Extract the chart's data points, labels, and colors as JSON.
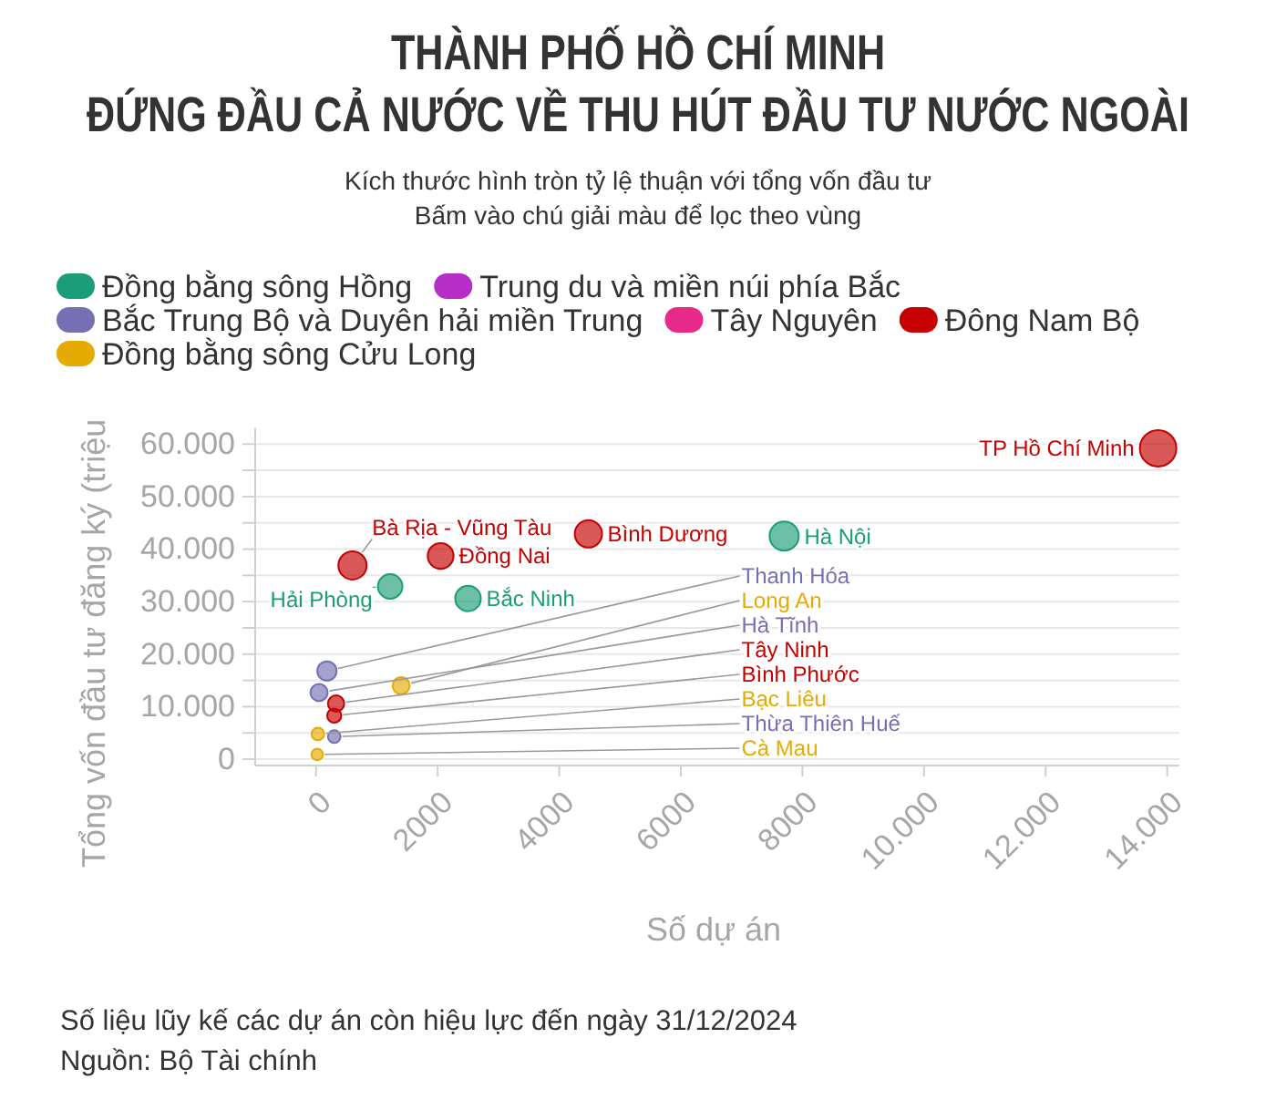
{
  "chart_data": {
    "type": "bubble",
    "title": "THÀNH PHỐ HỒ CHÍ MINH\nĐỨNG ĐẦU CẢ NƯỚC VỀ THU HÚT ĐẦU TƯ NƯỚC NGOÀI",
    "subtitle": "Kích thước hình tròn tỷ lệ thuận với tổng vốn đầu tư\nBấm vào chú giải màu để lọc theo vùng",
    "xlabel": "Số dự án",
    "ylabel": "Tổng vốn đầu tư đăng ký (triệu",
    "xlim": [
      -1000,
      14200
    ],
    "ylim": [
      -1200,
      63000
    ],
    "xticks": [
      0,
      2000,
      4000,
      6000,
      8000,
      {
        "value": 10000,
        "label": "10.000"
      },
      {
        "value": 12000,
        "label": "12.000"
      },
      {
        "value": 14000,
        "label": "14.000"
      }
    ],
    "yticks": [
      0,
      {
        "value": 5000,
        "label": null
      },
      {
        "value": 10000,
        "label": "10.000"
      },
      {
        "value": 15000,
        "label": null
      },
      {
        "value": 20000,
        "label": "20.000"
      },
      {
        "value": 25000,
        "label": null
      },
      {
        "value": 30000,
        "label": "30.000"
      },
      {
        "value": 35000,
        "label": null
      },
      {
        "value": 40000,
        "label": "40.000"
      },
      {
        "value": 45000,
        "label": null
      },
      {
        "value": 50000,
        "label": "50.000"
      },
      {
        "value": 55000,
        "label": null
      },
      {
        "value": 60000,
        "label": "60.000"
      }
    ],
    "grid": "y",
    "legend": "top left",
    "series": [
      {
        "name": "Đồng bằng sông Hồng",
        "color": "#1b9e77",
        "x": [
          7700,
          1220,
          2500
        ],
        "values": [
          42500,
          32900,
          30600
        ],
        "sizes": [
          0.64,
          0.45,
          0.49
        ]
      },
      {
        "name": "Trung du và miền núi phía Bắc",
        "color": "#b82cc9"
      },
      {
        "name": "Bắc Trung Bộ và Duyên hải miền Trung",
        "color": "#7570b3",
        "x": [
          180,
          50,
          300
        ],
        "values": [
          16800,
          12700,
          4300
        ],
        "sizes": [
          0.28,
          0.22,
          0.12
        ]
      },
      {
        "name": "Tây Nguyên",
        "color": "#e7298a"
      },
      {
        "name": "Đông Nam Bộ",
        "color": "#c40000",
        "x": [
          13850,
          4480,
          2050,
          600,
          330,
          300
        ],
        "values": [
          59200,
          42900,
          38700,
          36900,
          10600,
          8300
        ],
        "sizes": [
          1,
          0.56,
          0.5,
          0.6,
          0.2,
          0.15
        ]
      },
      {
        "name": "Đồng bằng sông Cửu Long",
        "color": "#e6ab02",
        "x": [
          1400,
          30,
          20
        ],
        "values": [
          14000,
          4800,
          900
        ],
        "sizes": [
          0.22,
          0.12,
          0.1
        ]
      }
    ],
    "annotations": [
      {
        "text": "TP Hồ Chí Minh",
        "x": 13850,
        "y": 59200
      },
      {
        "text": "Hà Nội",
        "x": 7700,
        "y": 42500
      },
      {
        "text": "Bình Dương",
        "x": 4480,
        "y": 42900
      },
      {
        "text": "Đồng Nai",
        "x": 2050,
        "y": 38700
      },
      {
        "text": "Bà Rịa - Vũng Tàu",
        "x": 600,
        "y": 36900
      },
      {
        "text": "Hải Phòng",
        "x": 1220,
        "y": 32900
      },
      {
        "text": "Bắc Ninh",
        "x": 2500,
        "y": 30600
      },
      {
        "text": "Thanh Hóa",
        "x": 180,
        "y": 16800
      },
      {
        "text": "Hà Tĩnh",
        "x": 50,
        "y": 12700
      },
      {
        "text": "Thừa Thiên Huế",
        "x": 300,
        "y": 4300
      },
      {
        "text": "Tây Ninh",
        "x": 330,
        "y": 10600
      },
      {
        "text": "Bình Phước",
        "x": 300,
        "y": 8300
      },
      {
        "text": "Long An",
        "x": 1400,
        "y": 14000
      },
      {
        "text": "Bạc Liêu",
        "x": 30,
        "y": 4800
      },
      {
        "text": "Cà Mau",
        "x": 20,
        "y": 900
      },
      "Số liệu lũy kế các dự án còn hiệu lực đến ngày 31/12/2024",
      "Nguồn: Bộ Tài chính"
    ]
  }
}
